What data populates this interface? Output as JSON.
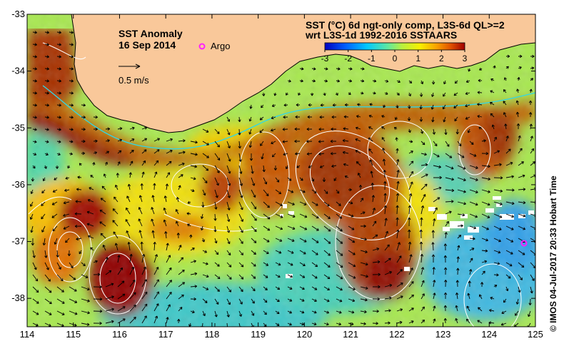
{
  "map": {
    "title": "SST Anomaly",
    "date": "16 Sep 2014",
    "argo_label": "Argo",
    "scale_label": "0.5 m/s",
    "colorbar_title_line1": "SST (°C) 6d ngt-only comp, L3S-6d QL>=2",
    "colorbar_title_line2": "wrt L3S-1d 1992-2016 SSTAARS",
    "colorbar_ticks": [
      "-3",
      "-2",
      "-1",
      "0",
      "1",
      "2",
      "3"
    ],
    "credit": "©  IMOS 04-Jul-2017 20:33 Hobart Time",
    "lon_range": [
      114,
      125
    ],
    "lat_range": [
      -38.5,
      -33
    ],
    "lon_ticks": [
      "114",
      "115",
      "116",
      "117",
      "118",
      "119",
      "120",
      "121",
      "122",
      "123",
      "124",
      "125"
    ],
    "lat_ticks": [
      "-33",
      "-34",
      "-35",
      "-36",
      "-37",
      "-38"
    ],
    "colors": {
      "land": "#f9c89a",
      "argo": "#ff20ff",
      "contour": "#ffffff",
      "shelf_contour": "#30d8e8"
    },
    "colormap": [
      "#0000c0",
      "#0060ff",
      "#00c8ff",
      "#60e8a0",
      "#b8f040",
      "#f8f000",
      "#f8a000",
      "#e05000",
      "#a00000"
    ]
  }
}
